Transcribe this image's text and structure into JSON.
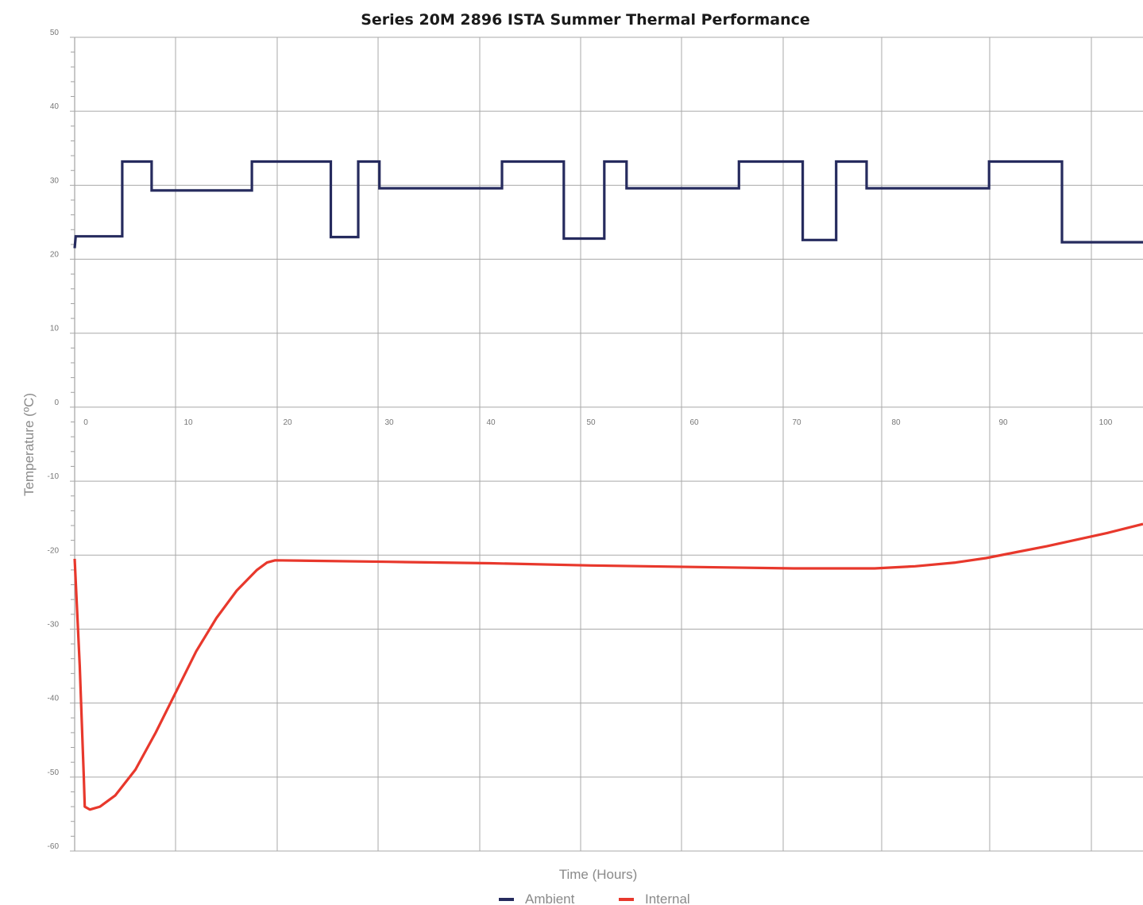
{
  "chart_data": {
    "type": "line",
    "title": "Series 20M 2896 ISTA Summer Thermal Performance",
    "xlabel": "Time (Hours)",
    "ylabel": "Temperature (ºC)",
    "xlim": [
      -1,
      104.5
    ],
    "ylim": [
      -60,
      50
    ],
    "x_ticks": [
      "0",
      "10",
      "20",
      "30",
      "40",
      "50",
      "60",
      "70",
      "80",
      "90",
      "100"
    ],
    "y_ticks": [
      "50",
      "40",
      "30",
      "20",
      "10",
      "0",
      "-10",
      "-20",
      "-30",
      "-40",
      "-50",
      "-60"
    ],
    "grid": true,
    "legend_position": "bottom",
    "series": [
      {
        "name": "Ambient",
        "color": "#262b5e",
        "points": [
          [
            -1,
            21.5
          ],
          [
            -0.9,
            23.1
          ],
          [
            3.7,
            23.1
          ],
          [
            3.7,
            33.2
          ],
          [
            6.6,
            33.2
          ],
          [
            6.6,
            29.3
          ],
          [
            16.5,
            29.3
          ],
          [
            16.5,
            33.2
          ],
          [
            24.3,
            33.2
          ],
          [
            24.3,
            23.0
          ],
          [
            27.0,
            23.0
          ],
          [
            27.0,
            33.2
          ],
          [
            29.1,
            33.2
          ],
          [
            29.1,
            29.6
          ],
          [
            41.2,
            29.6
          ],
          [
            41.2,
            33.2
          ],
          [
            47.3,
            33.2
          ],
          [
            47.3,
            22.8
          ],
          [
            51.3,
            22.8
          ],
          [
            51.3,
            33.2
          ],
          [
            53.5,
            33.2
          ],
          [
            53.5,
            29.6
          ],
          [
            64.6,
            29.6
          ],
          [
            64.6,
            33.2
          ],
          [
            70.9,
            33.2
          ],
          [
            70.9,
            22.6
          ],
          [
            74.2,
            22.6
          ],
          [
            74.2,
            33.2
          ],
          [
            77.2,
            33.2
          ],
          [
            77.2,
            29.6
          ],
          [
            89.3,
            29.6
          ],
          [
            89.3,
            33.2
          ],
          [
            96.5,
            33.2
          ],
          [
            96.5,
            22.3
          ],
          [
            104.5,
            22.3
          ]
        ]
      },
      {
        "name": "Internal",
        "color": "#e8382c",
        "points": [
          [
            -1,
            -20.5
          ],
          [
            -0.5,
            -35
          ],
          [
            -0.1,
            -50
          ],
          [
            0.0,
            -54.0
          ],
          [
            0.5,
            -54.4
          ],
          [
            1.5,
            -54.0
          ],
          [
            3.0,
            -52.5
          ],
          [
            5.0,
            -49.0
          ],
          [
            7.0,
            -44.0
          ],
          [
            9.0,
            -38.5
          ],
          [
            11.0,
            -33.0
          ],
          [
            13.0,
            -28.5
          ],
          [
            15.0,
            -24.8
          ],
          [
            17.0,
            -22.0
          ],
          [
            18.0,
            -21.0
          ],
          [
            18.8,
            -20.7
          ],
          [
            30.0,
            -20.9
          ],
          [
            40.0,
            -21.1
          ],
          [
            50.0,
            -21.4
          ],
          [
            60.0,
            -21.6
          ],
          [
            70.0,
            -21.8
          ],
          [
            78.0,
            -21.8
          ],
          [
            82.0,
            -21.5
          ],
          [
            86.0,
            -21.0
          ],
          [
            89.0,
            -20.4
          ],
          [
            92.0,
            -19.6
          ],
          [
            95.0,
            -18.8
          ],
          [
            98.0,
            -17.9
          ],
          [
            101.0,
            -17.0
          ],
          [
            104.5,
            -15.8
          ]
        ]
      }
    ]
  }
}
